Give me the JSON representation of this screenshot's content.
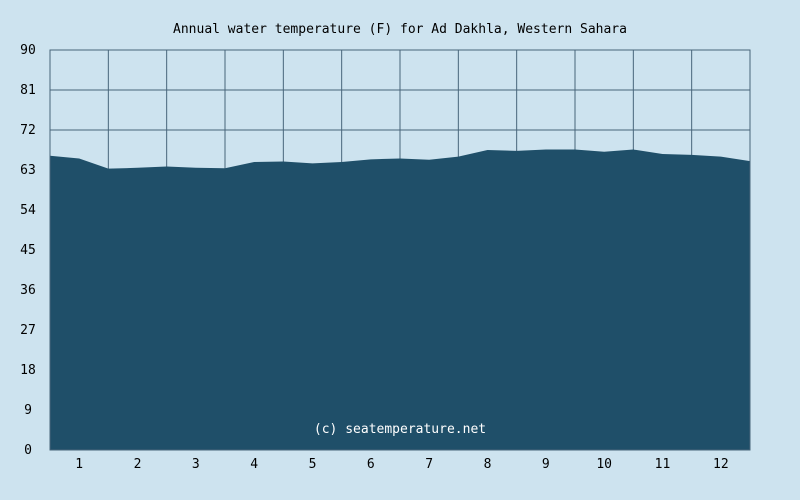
{
  "chart_data": {
    "type": "area",
    "title": "Annual water temperature (F) for Ad Dakhla, Western Sahara",
    "xlabel": "",
    "ylabel": "",
    "ylim": [
      0,
      90
    ],
    "y_ticks": [
      "0",
      "9",
      "18",
      "27",
      "36",
      "45",
      "54",
      "63",
      "72",
      "81",
      "90"
    ],
    "x_ticks": [
      "1",
      "2",
      "3",
      "4",
      "5",
      "6",
      "7",
      "8",
      "9",
      "10",
      "11",
      "12"
    ],
    "xlim": [
      0.5,
      12.5
    ],
    "grid": true,
    "x": [
      0.5,
      1.0,
      1.5,
      2.0,
      2.5,
      3.0,
      3.5,
      4.0,
      4.5,
      5.0,
      5.5,
      6.0,
      6.5,
      7.0,
      7.5,
      8.0,
      8.5,
      9.0,
      9.5,
      10.0,
      10.5,
      11.0,
      11.5,
      12.0,
      12.5
    ],
    "values": [
      66.2,
      65.6,
      63.3,
      63.5,
      63.8,
      63.5,
      63.4,
      64.8,
      64.9,
      64.5,
      64.8,
      65.4,
      65.6,
      65.3,
      66.0,
      67.5,
      67.3,
      67.6,
      67.6,
      67.1,
      67.6,
      66.6,
      66.4,
      66.0,
      65.0
    ],
    "colors": {
      "background": "#cde3ef",
      "plot_background": "#cde3ef",
      "fill": "#1f4f69",
      "grid": "#48657a",
      "axis_text": "#000000",
      "watermark": "#ffffff"
    },
    "watermark": "(c) seatemperature.net"
  }
}
